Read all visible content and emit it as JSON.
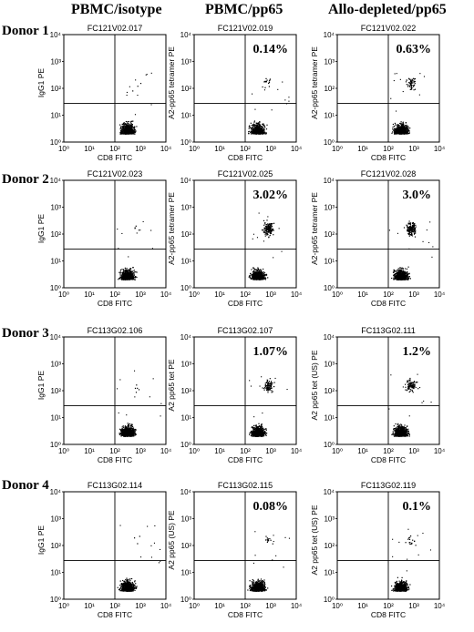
{
  "column_titles": [
    "PBMC/isotype",
    "PBMC/pp65",
    "Allo-depleted/pp65"
  ],
  "row_titles": [
    "Donor 1",
    "Donor 2",
    "Donor 3",
    "Donor 4"
  ],
  "axis_ticks": [
    "10⁰",
    "10¹",
    "10²",
    "10³",
    "10⁴"
  ],
  "panels": [
    {
      "id": "FC121V02.017",
      "ylabel": "IgG1 PE",
      "xlabel": "CD8 FITC",
      "pct": "",
      "upper_density": 0.02
    },
    {
      "id": "FC121V02.019",
      "ylabel": "A2-pp65 tetramer PE",
      "xlabel": "CD8 FITC",
      "pct": "0.14%",
      "upper_density": 0.1
    },
    {
      "id": "FC121V02.022",
      "ylabel": "A2-pp65 tetramer PE",
      "xlabel": "CD8 FITC",
      "pct": "0.63%",
      "upper_density": 0.35
    },
    {
      "id": "FC121V02.023",
      "ylabel": "IgG1 PE",
      "xlabel": "CD8 FITC",
      "pct": "",
      "upper_density": 0.02
    },
    {
      "id": "FC121V02.025",
      "ylabel": "A2-pp65 tetramer PE",
      "xlabel": "CD8 FITC",
      "pct": "3.02%",
      "upper_density": 1.0
    },
    {
      "id": "FC121V02.028",
      "ylabel": "A2-pp65 tetramer PE",
      "xlabel": "CD8 FITC",
      "pct": "3.0%",
      "upper_density": 1.0
    },
    {
      "id": "FC113G02.106",
      "ylabel": "IgG1 PE",
      "xlabel": "CD8 FITC",
      "pct": "",
      "upper_density": 0.03
    },
    {
      "id": "FC113G02.107",
      "ylabel": "A2 pp65 tet PE",
      "xlabel": "CD8 FITC",
      "pct": "1.07%",
      "upper_density": 0.55
    },
    {
      "id": "FC113G02.111",
      "ylabel": "A2 pp65 tet (US) PE",
      "xlabel": "CD8 FITC",
      "pct": "1.2%",
      "upper_density": 0.6
    },
    {
      "id": "FC113G02.114",
      "ylabel": "IgG1 PE",
      "xlabel": "CD8 FITC",
      "pct": "",
      "upper_density": 0.02
    },
    {
      "id": "FC113G02.115",
      "ylabel": "A2 pp65 (US) PE",
      "xlabel": "CD8 FITC",
      "pct": "0.08%",
      "upper_density": 0.08
    },
    {
      "id": "FC113G02.119",
      "ylabel": "A2 pp65 tet (US) PE",
      "xlabel": "CD8 FITC",
      "pct": "0.1%",
      "upper_density": 0.1
    }
  ],
  "colors": {
    "ink": "#000000",
    "background": "#ffffff"
  }
}
